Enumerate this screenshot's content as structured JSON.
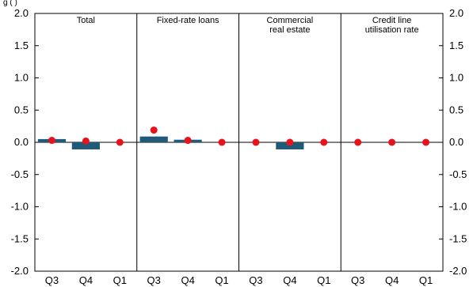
{
  "chart_data": {
    "type": "bar",
    "top_note": "g   (   )",
    "ylim": [
      -2.0,
      2.0
    ],
    "yticks": [
      "2.0",
      "1.5",
      "1.0",
      "0.5",
      "0.0",
      "-0.5",
      "-1.0",
      "-1.5",
      "-2.0"
    ],
    "ytick_values": [
      2.0,
      1.5,
      1.0,
      0.5,
      0.0,
      -0.5,
      -1.0,
      -1.5,
      -2.0
    ],
    "grid": false,
    "colors": {
      "bar": "#1f5b78",
      "marker": "#e8121c"
    },
    "panels": [
      {
        "title": [
          "Total"
        ],
        "categories": [
          "Q3",
          "Q4",
          "Q1"
        ],
        "bars": [
          0.05,
          -0.11,
          0.0
        ],
        "markers": [
          0.03,
          0.02,
          0.0
        ]
      },
      {
        "title": [
          "Fixed-rate loans"
        ],
        "categories": [
          "Q3",
          "Q4",
          "Q1"
        ],
        "bars": [
          0.09,
          0.04,
          0.0
        ],
        "markers": [
          0.19,
          0.03,
          0.0
        ]
      },
      {
        "title": [
          "Commercial",
          "real estate"
        ],
        "categories": [
          "Q3",
          "Q4",
          "Q1"
        ],
        "bars": [
          0.0,
          -0.11,
          0.0
        ],
        "markers": [
          0.0,
          0.0,
          0.0
        ]
      },
      {
        "title": [
          "Credit line",
          "utilisation rate"
        ],
        "categories": [
          "Q3",
          "Q4",
          "Q1"
        ],
        "bars": [
          0.0,
          0.0,
          0.0
        ],
        "markers": [
          0.0,
          0.0,
          0.0
        ]
      }
    ]
  }
}
